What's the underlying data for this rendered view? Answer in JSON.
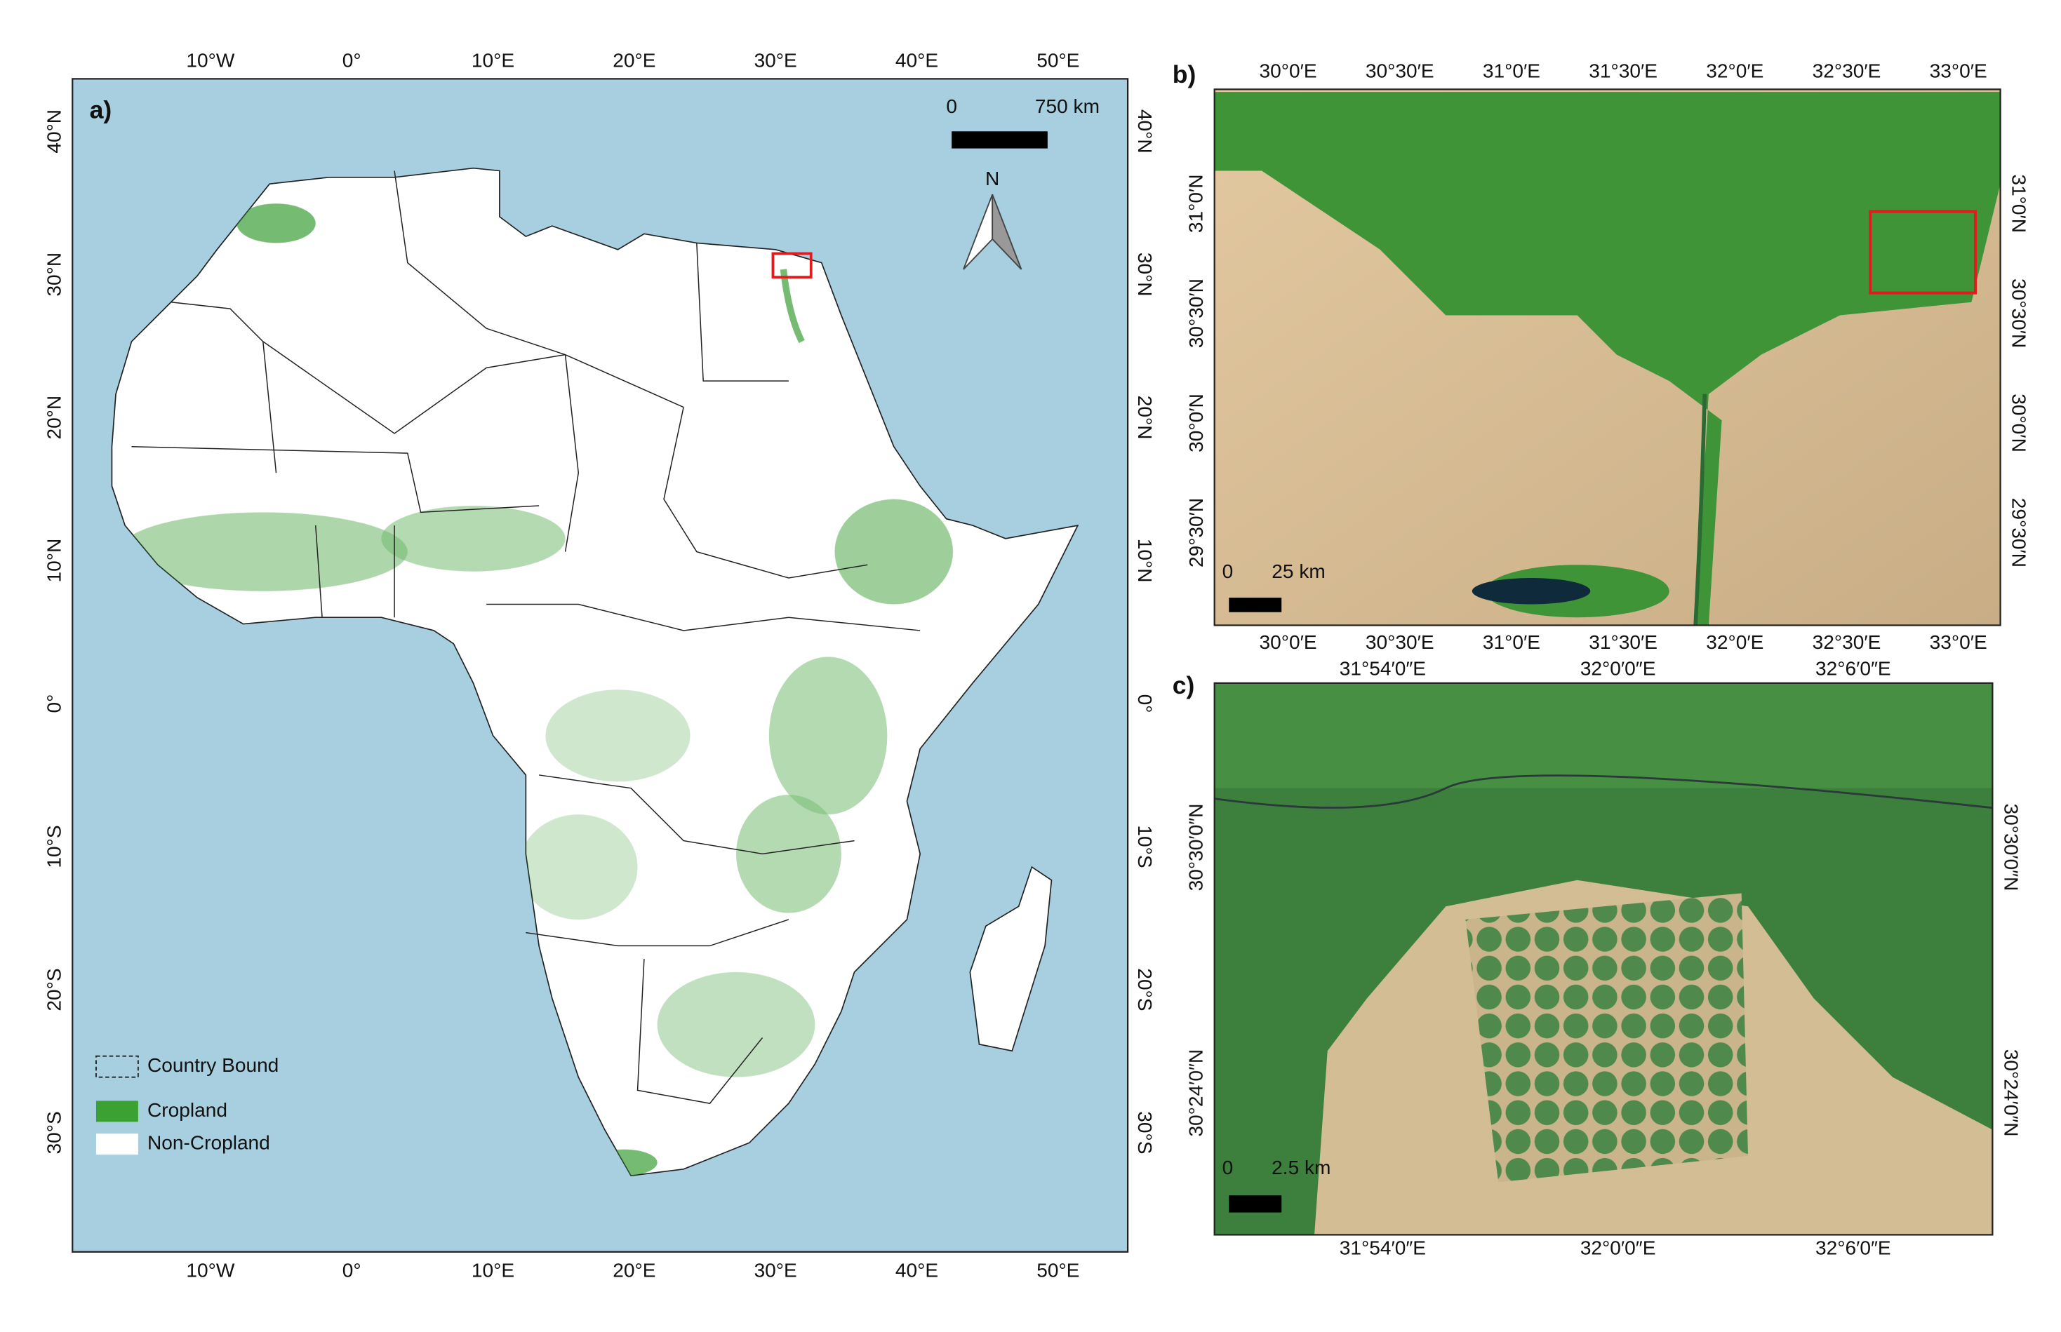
{
  "panel_a": {
    "label": "a)",
    "lon_ticks": [
      "10°W",
      "0°",
      "10°E",
      "20°E",
      "30°E",
      "40°E",
      "50°E"
    ],
    "lat_ticks": [
      "40°N",
      "30°N",
      "20°N",
      "10°N",
      "0°",
      "10°S",
      "20°S",
      "30°S"
    ],
    "scale_bar": {
      "start": "0",
      "end": "750 km"
    },
    "north_arrow": "N",
    "legend": [
      "Country Bound",
      "Cropland",
      "Non-Cropland"
    ]
  },
  "panel_b": {
    "label": "b)",
    "lon_ticks": [
      "30°0′E",
      "30°30′E",
      "31°0′E",
      "31°30′E",
      "32°0′E",
      "32°30′E",
      "33°0′E"
    ],
    "lat_ticks": [
      "31°0′N",
      "30°30′N",
      "30°0′N",
      "29°30′N"
    ],
    "scale_bar": {
      "start": "0",
      "end": "25 km"
    }
  },
  "panel_c": {
    "label": "c)",
    "lon_ticks": [
      "31°54′0″E",
      "32°0′0″E",
      "32°6′0″E"
    ],
    "lat_ticks": [
      "30°30′0″N",
      "30°24′0″N"
    ],
    "scale_bar": {
      "start": "0",
      "end": "2.5 km"
    }
  }
}
